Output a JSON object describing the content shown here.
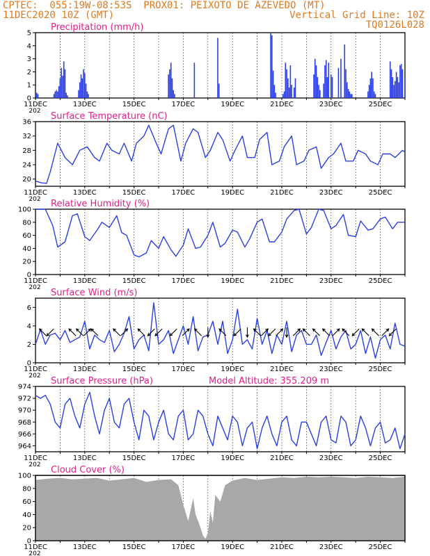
{
  "header": {
    "line1_left": "CPTEC:  055:19W-08:53S  PROX01: PEIXOTO DE AZEVEDO (MT)",
    "line2_left": "11DEC2020 10Z (GMT)",
    "line2_right": "Vertical Grid Line: 10Z",
    "line3_right": "TQ0126L028"
  },
  "colors": {
    "orange": "#e07a1f",
    "magenta": "#e0208c",
    "line": "#2c3fe0",
    "cloud": "#a8a8a8",
    "axis": "#000000"
  },
  "x_tick_labels": [
    "11DEC",
    "13DEC",
    "15DEC",
    "17DEC",
    "19DEC",
    "21DEC",
    "23DEC",
    "25DEC"
  ],
  "year_stub": "202",
  "model_altitude": "Model Altitude: 355.209  m",
  "chart_data": [
    {
      "type": "bar",
      "title": "Precipitation  (mm/h)",
      "x_unit": "days since 11DEC 10Z",
      "ylim": [
        0,
        5
      ],
      "yticks": [
        "0",
        "1",
        "2",
        "3",
        "4",
        "5"
      ],
      "x": [
        0.05,
        0.1,
        0.75,
        0.8,
        0.85,
        0.9,
        0.95,
        1.0,
        1.05,
        1.1,
        1.15,
        1.2,
        1.25,
        1.3,
        1.75,
        1.8,
        1.85,
        1.9,
        1.95,
        2.0,
        2.05,
        2.1,
        2.15,
        5.4,
        5.45,
        5.5,
        5.55,
        5.6,
        5.65,
        6.45,
        7.4,
        7.45,
        9.55,
        9.6,
        9.65,
        9.7,
        9.75,
        10.05,
        10.1,
        10.15,
        10.2,
        10.25,
        10.3,
        10.35,
        10.4,
        10.5,
        10.55,
        11.3,
        11.35,
        11.4,
        11.45,
        11.5,
        11.55,
        11.7,
        11.75,
        11.8,
        11.85,
        11.9,
        12.0,
        12.05,
        12.3,
        12.4,
        12.55,
        12.6,
        12.65,
        12.7,
        12.75,
        12.8,
        12.85,
        13.5,
        13.55,
        13.6,
        13.65,
        13.7,
        13.75,
        13.8,
        14.4,
        14.45,
        14.5,
        14.55,
        14.6,
        14.65,
        14.7,
        14.75,
        14.8,
        14.85,
        14.9,
        15.0
      ],
      "values": [
        0.4,
        0.3,
        0.3,
        0.5,
        0.6,
        0.5,
        0.9,
        1.5,
        2.3,
        1.7,
        2.8,
        2.2,
        0.4,
        0.2,
        0.6,
        1.2,
        1.8,
        1.5,
        2.2,
        1.9,
        1.1,
        0.5,
        0.3,
        1.8,
        2.2,
        2.7,
        1.5,
        0.6,
        0.3,
        2.7,
        4.6,
        1.1,
        5.0,
        4.8,
        2.1,
        1.0,
        0.4,
        0.3,
        0.5,
        2.7,
        2.2,
        1.5,
        0.8,
        2.5,
        1.0,
        0.8,
        1.5,
        1.8,
        3.0,
        2.5,
        1.6,
        1.0,
        0.6,
        1.1,
        2.5,
        2.9,
        1.6,
        2.7,
        1.8,
        1.6,
        2.3,
        3.0,
        4.1,
        2.2,
        1.2,
        0.7,
        0.5,
        0.3,
        0.3,
        0.5,
        1.0,
        1.5,
        2.0,
        1.5,
        0.5,
        0.3,
        2.8,
        2.2,
        1.6,
        1.0,
        1.3,
        2.0,
        1.6,
        1.2,
        2.5,
        2.6,
        2.2,
        1.5
      ]
    },
    {
      "type": "line",
      "title": "Surface Temperature  (nC)",
      "x_unit": "days since 11DEC 10Z",
      "ylim": [
        18,
        36
      ],
      "yticks": [
        "20",
        "24",
        "28",
        "32",
        "36"
      ],
      "x": [
        0,
        0.2,
        0.45,
        0.6,
        0.9,
        1.2,
        1.5,
        1.8,
        2.1,
        2.4,
        2.6,
        2.9,
        3.1,
        3.4,
        3.6,
        3.9,
        4.1,
        4.4,
        4.6,
        4.9,
        5.1,
        5.4,
        5.6,
        5.9,
        6.1,
        6.4,
        6.6,
        6.9,
        7.1,
        7.4,
        7.6,
        7.9,
        8.1,
        8.4,
        8.6,
        8.9,
        9.1,
        9.4,
        9.6,
        9.9,
        10.1,
        10.4,
        10.6,
        10.9,
        11.1,
        11.4,
        11.6,
        11.9,
        12.1,
        12.4,
        12.6,
        12.9,
        13.1,
        13.4,
        13.6,
        13.9,
        14.1,
        14.4,
        14.6,
        14.9,
        15.0
      ],
      "values": [
        19.5,
        19,
        18.8,
        22,
        30,
        26,
        24,
        28,
        29,
        26,
        25,
        30,
        28,
        27,
        30,
        25,
        30,
        32,
        35,
        30,
        27,
        34,
        35,
        25,
        30,
        34,
        33,
        26,
        28,
        33,
        31,
        25,
        28,
        32,
        26,
        26,
        31,
        33,
        24,
        25,
        29,
        32,
        24,
        25,
        28,
        29,
        23,
        26,
        27,
        30,
        25,
        25,
        28,
        27,
        25,
        24,
        27,
        27,
        26,
        28,
        27.5
      ]
    },
    {
      "type": "line",
      "title": "Relative Humidity  (%)",
      "x_unit": "days since 11DEC 10Z",
      "ylim": [
        0,
        100
      ],
      "yticks": [
        "0",
        "20",
        "40",
        "60",
        "80",
        "100"
      ],
      "x": [
        0,
        0.4,
        0.7,
        0.9,
        1.2,
        1.5,
        1.7,
        2.0,
        2.2,
        2.5,
        2.7,
        3.0,
        3.3,
        3.5,
        3.7,
        4.0,
        4.2,
        4.5,
        4.7,
        5.0,
        5.2,
        5.5,
        5.7,
        6.0,
        6.2,
        6.5,
        6.7,
        7.0,
        7.2,
        7.5,
        7.7,
        8.0,
        8.2,
        8.5,
        8.7,
        9.0,
        9.2,
        9.5,
        9.7,
        10.0,
        10.2,
        10.5,
        10.7,
        11.0,
        11.2,
        11.5,
        11.7,
        12.0,
        12.2,
        12.5,
        12.7,
        13.0,
        13.2,
        13.5,
        13.7,
        14.0,
        14.2,
        14.5,
        14.7,
        15.0
      ],
      "values": [
        100,
        100,
        75,
        42,
        50,
        90,
        93,
        58,
        52,
        68,
        80,
        72,
        90,
        64,
        60,
        30,
        27,
        33,
        52,
        40,
        58,
        38,
        28,
        45,
        70,
        40,
        42,
        60,
        80,
        42,
        48,
        68,
        65,
        42,
        55,
        80,
        85,
        50,
        50,
        65,
        85,
        98,
        100,
        62,
        72,
        100,
        98,
        70,
        75,
        92,
        60,
        58,
        82,
        68,
        70,
        85,
        88,
        70,
        80,
        80
      ]
    },
    {
      "type": "line",
      "title": "Surface Wind  (m/s)",
      "x_unit": "days since 11DEC 10Z",
      "ylim": [
        0,
        7
      ],
      "yticks": [
        "0",
        "2",
        "4",
        "6"
      ],
      "x": [
        0,
        0.2,
        0.4,
        0.6,
        0.8,
        1.0,
        1.2,
        1.4,
        1.6,
        1.8,
        2.0,
        2.2,
        2.4,
        2.6,
        2.8,
        3.0,
        3.2,
        3.4,
        3.6,
        3.8,
        4.0,
        4.2,
        4.4,
        4.6,
        4.8,
        5.0,
        5.2,
        5.4,
        5.6,
        5.8,
        6.0,
        6.2,
        6.4,
        6.6,
        6.8,
        7.0,
        7.2,
        7.4,
        7.6,
        7.8,
        8.0,
        8.2,
        8.4,
        8.6,
        8.8,
        9.0,
        9.2,
        9.4,
        9.6,
        9.8,
        10.0,
        10.2,
        10.4,
        10.6,
        10.8,
        11.0,
        11.2,
        11.4,
        11.6,
        11.8,
        12.0,
        12.2,
        12.4,
        12.6,
        12.8,
        13.0,
        13.2,
        13.4,
        13.6,
        13.8,
        14.0,
        14.2,
        14.4,
        14.6,
        14.8,
        15.0
      ],
      "values": [
        2.0,
        3.6,
        2.0,
        3.0,
        3.2,
        2.5,
        3.5,
        2.2,
        2.5,
        2.8,
        4.5,
        1.5,
        3.0,
        2.5,
        2.2,
        3.5,
        1.2,
        2.0,
        3.2,
        5.0,
        1.5,
        2.5,
        3.0,
        1.3,
        6.5,
        2.0,
        2.5,
        3.5,
        1.0,
        2.5,
        4.0,
        2.0,
        5.0,
        1.3,
        2.8,
        3.0,
        4.5,
        2.0,
        4.5,
        1.0,
        2.5,
        5.8,
        2.0,
        2.5,
        1.5,
        4.8,
        2.0,
        3.5,
        1.0,
        3.0,
        2.0,
        4.5,
        1.2,
        3.0,
        3.5,
        2.0,
        2.0,
        3.0,
        0.8,
        2.2,
        3.5,
        1.5,
        2.8,
        3.5,
        1.5,
        2.0,
        3.5,
        1.0,
        2.8,
        0.5,
        2.5,
        3.0,
        1.5,
        4.3,
        2.0,
        1.8
      ],
      "arrows": [
        {
          "t": 0.3,
          "u": -1,
          "v": 1
        },
        {
          "t": 0.6,
          "u": -1,
          "v": -1
        },
        {
          "t": 1.5,
          "u": -1,
          "v": 1
        },
        {
          "t": 1.8,
          "u": -1,
          "v": 1
        },
        {
          "t": 2.1,
          "u": 1,
          "v": 1
        },
        {
          "t": 2.4,
          "u": -1,
          "v": 1
        },
        {
          "t": 3.3,
          "u": -1,
          "v": 1
        },
        {
          "t": 3.6,
          "u": 1,
          "v": 1
        },
        {
          "t": 4.3,
          "u": -1,
          "v": 1
        },
        {
          "t": 4.7,
          "u": -1,
          "v": -1
        },
        {
          "t": 5.0,
          "u": -1,
          "v": -1
        },
        {
          "t": 5.6,
          "u": -1,
          "v": -1
        },
        {
          "t": 6.1,
          "u": 1,
          "v": 1
        },
        {
          "t": 6.6,
          "u": -1,
          "v": 1
        },
        {
          "t": 7.0,
          "u": 0,
          "v": -1
        },
        {
          "t": 7.6,
          "u": -1,
          "v": 1
        },
        {
          "t": 8.2,
          "u": -1,
          "v": -1
        },
        {
          "t": 8.6,
          "u": 0,
          "v": -1
        },
        {
          "t": 9.0,
          "u": -1,
          "v": 1
        },
        {
          "t": 9.3,
          "u": 1,
          "v": 1
        },
        {
          "t": 9.6,
          "u": -1,
          "v": -1
        },
        {
          "t": 9.9,
          "u": 1,
          "v": 1
        },
        {
          "t": 10.2,
          "u": 0,
          "v": -1
        },
        {
          "t": 10.6,
          "u": 1,
          "v": 1
        },
        {
          "t": 11.0,
          "u": -1,
          "v": 1
        },
        {
          "t": 11.4,
          "u": -1,
          "v": 1
        },
        {
          "t": 11.8,
          "u": -1,
          "v": 1
        },
        {
          "t": 12.2,
          "u": 1,
          "v": 1
        },
        {
          "t": 12.6,
          "u": -1,
          "v": 1
        },
        {
          "t": 13.0,
          "u": -1,
          "v": -1
        },
        {
          "t": 13.4,
          "u": -1,
          "v": 1
        },
        {
          "t": 13.8,
          "u": -1,
          "v": 1
        },
        {
          "t": 14.2,
          "u": 1,
          "v": 1
        },
        {
          "t": 14.5,
          "u": -1,
          "v": -1
        }
      ]
    },
    {
      "type": "line",
      "title": "Surface Pressure  (hPa)",
      "x_unit": "days since 11DEC 10Z",
      "ylim": [
        963,
        974
      ],
      "yticks": [
        "964",
        "966",
        "968",
        "970",
        "972",
        "974"
      ],
      "x": [
        0,
        0.2,
        0.4,
        0.6,
        0.8,
        1.0,
        1.2,
        1.4,
        1.6,
        1.8,
        2.0,
        2.2,
        2.4,
        2.6,
        2.8,
        3.0,
        3.2,
        3.4,
        3.6,
        3.8,
        4.0,
        4.2,
        4.4,
        4.6,
        4.8,
        5.0,
        5.2,
        5.4,
        5.6,
        5.8,
        6.0,
        6.2,
        6.4,
        6.6,
        6.8,
        7.0,
        7.2,
        7.4,
        7.6,
        7.8,
        8.0,
        8.2,
        8.4,
        8.6,
        8.8,
        9.0,
        9.2,
        9.4,
        9.6,
        9.8,
        10.0,
        10.2,
        10.4,
        10.6,
        10.8,
        11.0,
        11.2,
        11.4,
        11.6,
        11.8,
        12.0,
        12.2,
        12.4,
        12.6,
        12.8,
        13.0,
        13.2,
        13.4,
        13.6,
        13.8,
        14.0,
        14.2,
        14.4,
        14.6,
        14.8,
        15.0
      ],
      "values": [
        972.5,
        972,
        972.5,
        971,
        968,
        967,
        971,
        972,
        969,
        967,
        971,
        973,
        969,
        966,
        970,
        972,
        968,
        967,
        971,
        972,
        968,
        965,
        970,
        969,
        965,
        968,
        970,
        966,
        965,
        969,
        970,
        965,
        966,
        970,
        969,
        966,
        964,
        969,
        967,
        965,
        969,
        968,
        964,
        967,
        968,
        963.5,
        967,
        969,
        966,
        964,
        968,
        969,
        965,
        964,
        968,
        968,
        966,
        964,
        968,
        969,
        965,
        964.5,
        969,
        968,
        964,
        965,
        969,
        967,
        964,
        967,
        968,
        964.5,
        965,
        967,
        963.5,
        966
      ]
    },
    {
      "type": "area",
      "title": "Cloud Cover  (%)",
      "x_unit": "days since 11DEC 10Z",
      "ylim": [
        0,
        100
      ],
      "yticks": [
        "0",
        "20",
        "40",
        "60",
        "80",
        "100"
      ],
      "x": [
        0,
        0.5,
        1.0,
        1.5,
        2.0,
        2.5,
        3.0,
        3.5,
        4.0,
        4.5,
        5.0,
        5.5,
        5.8,
        6.0,
        6.2,
        6.4,
        6.5,
        6.7,
        6.8,
        6.9,
        7.0,
        7.1,
        7.2,
        7.3,
        7.5,
        7.7,
        8.0,
        8.5,
        9.0,
        9.5,
        10.0,
        10.5,
        11.0,
        11.5,
        12.0,
        12.5,
        13.0,
        13.5,
        14.0,
        14.5,
        15.0
      ],
      "values": [
        93,
        95,
        96,
        94,
        95,
        96,
        92,
        94,
        96,
        90,
        93,
        94,
        85,
        55,
        30,
        65,
        40,
        20,
        8,
        3,
        12,
        45,
        28,
        70,
        60,
        85,
        92,
        96,
        93,
        95,
        97,
        96,
        98,
        97,
        98,
        97,
        96,
        98,
        97,
        96,
        98
      ]
    }
  ]
}
